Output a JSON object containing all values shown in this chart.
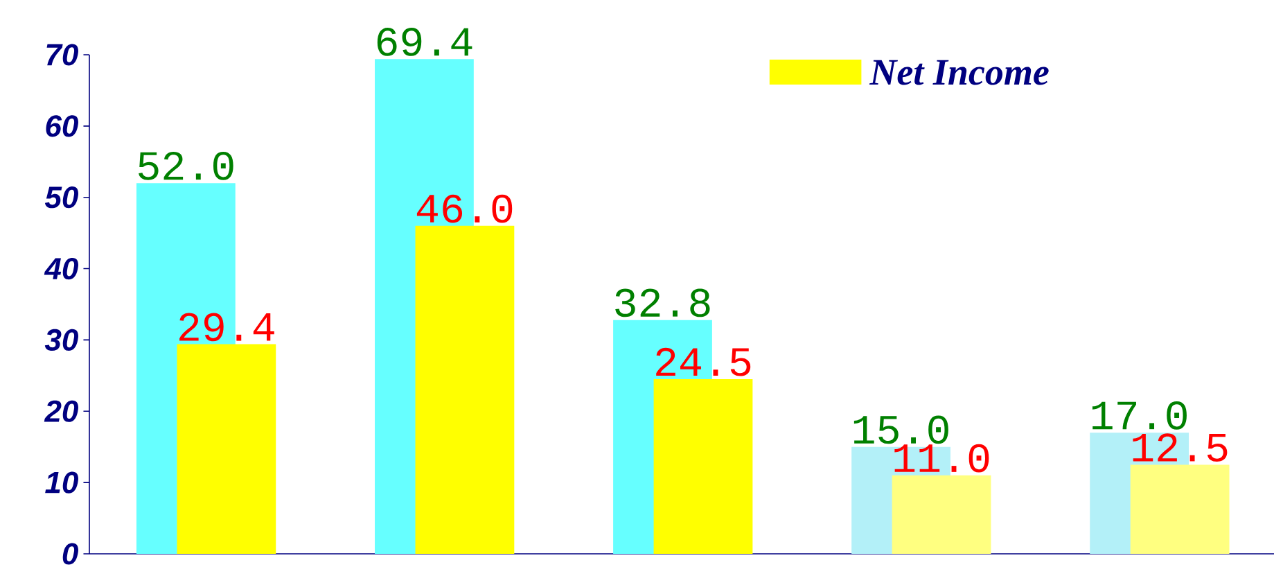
{
  "chart_data": {
    "type": "bar",
    "categories": [
      null,
      null,
      null,
      null,
      null
    ],
    "series": [
      {
        "color": "#66ffff",
        "colors": [
          "#66ffff",
          "#66ffff",
          "#66ffff",
          "#b3f0f8",
          "#b3f0f8"
        ],
        "values": [
          52.0,
          69.4,
          32.8,
          15.0,
          17.0
        ],
        "value_labels": [
          "52.0",
          "69.4",
          "32.8",
          "15.0",
          "17.0"
        ]
      },
      {
        "name": "Net Income",
        "color": "#ffff00",
        "colors": [
          "#ffff00",
          "#ffff00",
          "#ffff00",
          "#ffff80",
          "#ffff80"
        ],
        "values": [
          29.4,
          46.0,
          24.5,
          11.0,
          12.5
        ],
        "value_labels": [
          "29.4",
          "46.0",
          "24.5",
          "11.0",
          "12.5"
        ]
      }
    ],
    "ylim": [
      0,
      70
    ],
    "yticks": [
      0,
      10,
      20,
      30,
      40,
      50,
      60,
      70
    ],
    "legend": "top",
    "grid": false
  }
}
